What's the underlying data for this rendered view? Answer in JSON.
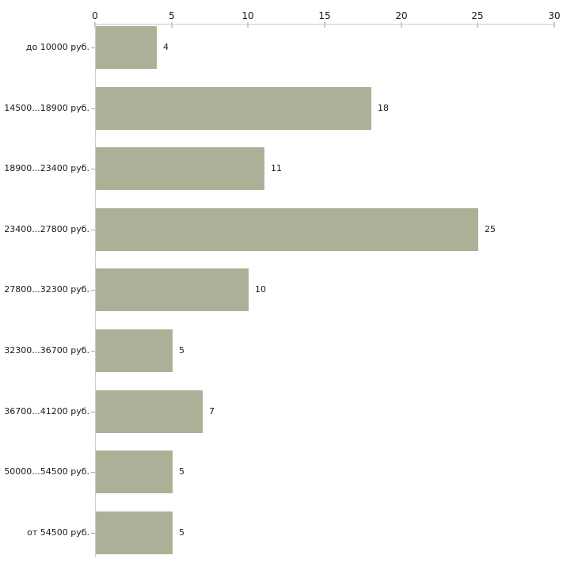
{
  "chart_data": {
    "type": "bar",
    "orientation": "horizontal",
    "categories": [
      "до 10000 руб.",
      "14500...18900 руб.",
      "18900...23400 руб.",
      "23400...27800 руб.",
      "27800...32300 руб.",
      "32300...36700 руб.",
      "36700...41200 руб.",
      "50000...54500 руб.",
      "от 54500 руб."
    ],
    "values": [
      4,
      18,
      11,
      25,
      10,
      5,
      7,
      5,
      5
    ],
    "xlim": [
      0,
      30
    ],
    "x_ticks": [
      0,
      5,
      10,
      15,
      20,
      25,
      30
    ],
    "x_axis_position": "top",
    "grid": false,
    "legend": false,
    "value_labels_shown": true,
    "colors": {
      "bar": "#abb197",
      "axis_line": "#cccccc",
      "x_tick_mark": "#cdd0b2",
      "category_tick_mark": "#a8a8a8",
      "text": "#1a1a1a",
      "background": "#ffffff"
    }
  }
}
